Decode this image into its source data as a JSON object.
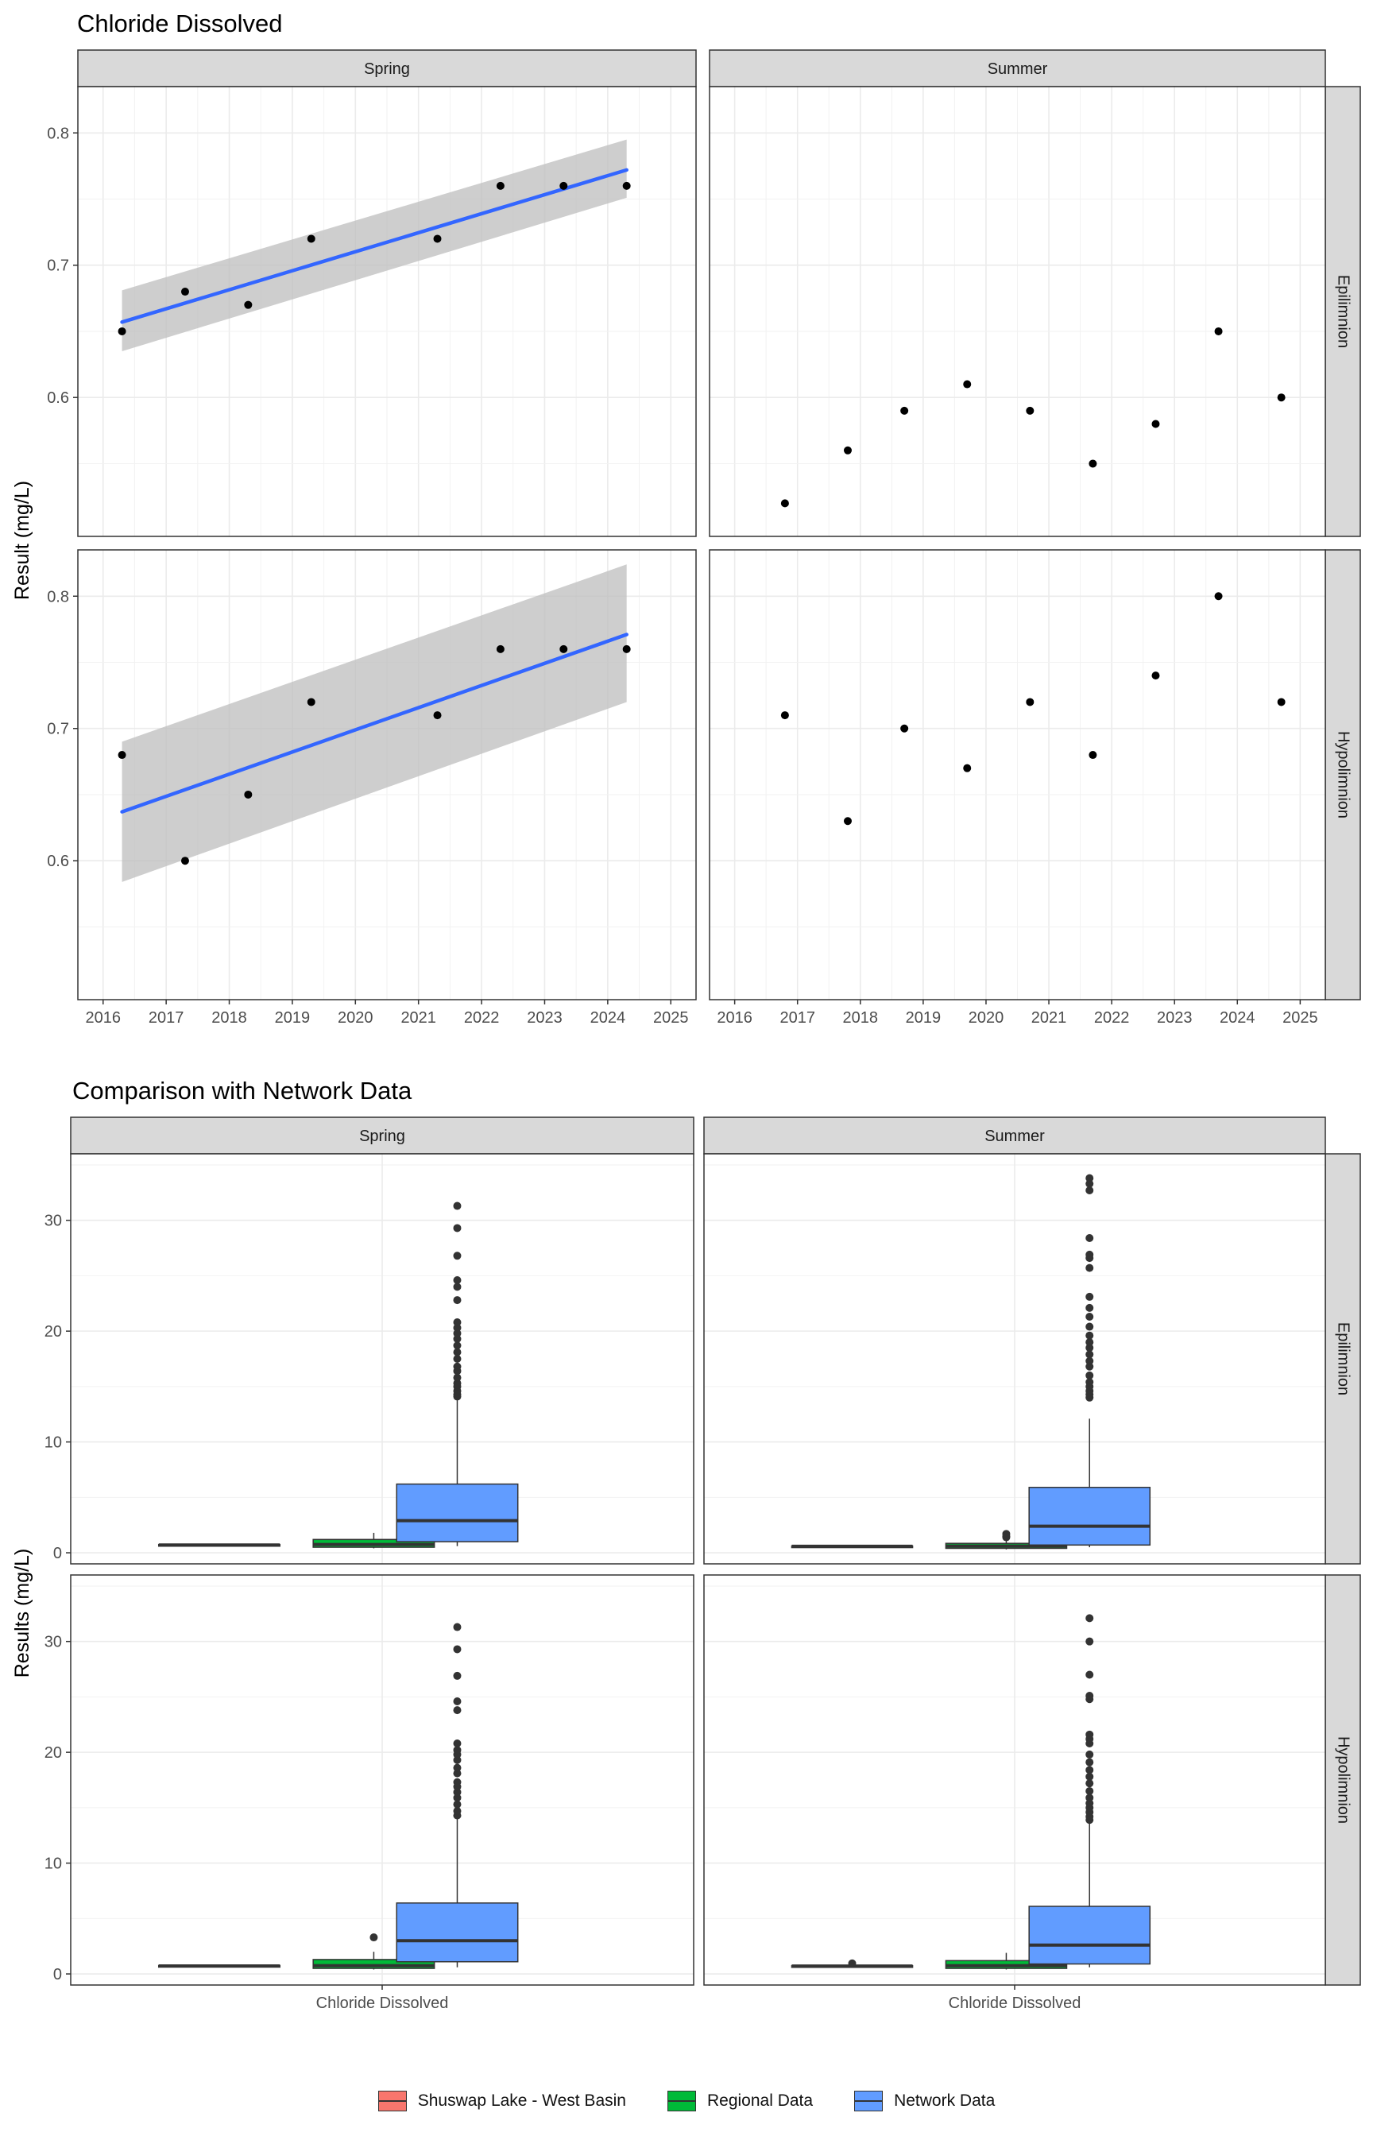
{
  "titles": {
    "top": "Chloride Dissolved",
    "bottom": "Comparison with Network Data"
  },
  "axis_labels": {
    "top_y": "Result (mg/L)",
    "bottom_y": "Results (mg/L)",
    "bottom_x_tick": "Chloride Dissolved"
  },
  "facets": {
    "columns": [
      "Spring",
      "Summer"
    ],
    "rows": [
      "Epilimnion",
      "Hypolimnion"
    ]
  },
  "colors": {
    "shuswap": "#F8766D",
    "regional": "#00BA38",
    "network": "#619CFF",
    "trend": "#3366FF",
    "ribbon": "#BDBDBD",
    "strip": "#D9D9D9",
    "grid": "#EBEBEB"
  },
  "chart_data": [
    {
      "type": "scatter",
      "title": "Chloride Dissolved",
      "ylabel": "Result (mg/L)",
      "xlim": [
        2015.6,
        2025.4
      ],
      "ylim": [
        0.495,
        0.835
      ],
      "x_ticks": [
        2016,
        2017,
        2018,
        2019,
        2020,
        2021,
        2022,
        2023,
        2024,
        2025
      ],
      "y_ticks": [
        0.6,
        0.7,
        0.8
      ],
      "grid": true,
      "panels": [
        {
          "season": "Spring",
          "layer": "Epilimnion",
          "points": [
            [
              2016.3,
              0.65
            ],
            [
              2017.3,
              0.68
            ],
            [
              2018.3,
              0.67
            ],
            [
              2019.3,
              0.72
            ],
            [
              2021.3,
              0.72
            ],
            [
              2022.3,
              0.76
            ],
            [
              2023.3,
              0.76
            ],
            [
              2024.3,
              0.76
            ]
          ],
          "trend": {
            "x": [
              2016.3,
              2024.3
            ],
            "y": [
              0.657,
              0.772
            ],
            "lower": [
              0.635,
              0.751
            ],
            "upper": [
              0.681,
              0.795
            ]
          }
        },
        {
          "season": "Summer",
          "layer": "Epilimnion",
          "points": [
            [
              2016.8,
              0.52
            ],
            [
              2017.8,
              0.56
            ],
            [
              2018.7,
              0.59
            ],
            [
              2019.7,
              0.61
            ],
            [
              2020.7,
              0.59
            ],
            [
              2021.7,
              0.55
            ],
            [
              2022.7,
              0.58
            ],
            [
              2023.7,
              0.65
            ],
            [
              2024.7,
              0.6
            ]
          ]
        },
        {
          "season": "Spring",
          "layer": "Hypolimnion",
          "points": [
            [
              2016.3,
              0.68
            ],
            [
              2017.3,
              0.6
            ],
            [
              2018.3,
              0.65
            ],
            [
              2019.3,
              0.72
            ],
            [
              2021.3,
              0.71
            ],
            [
              2022.3,
              0.76
            ],
            [
              2023.3,
              0.76
            ],
            [
              2024.3,
              0.76
            ]
          ],
          "trend": {
            "x": [
              2016.3,
              2024.3
            ],
            "y": [
              0.637,
              0.771
            ],
            "lower": [
              0.584,
              0.72
            ],
            "upper": [
              0.69,
              0.824
            ]
          }
        },
        {
          "season": "Summer",
          "layer": "Hypolimnion",
          "points": [
            [
              2016.8,
              0.71
            ],
            [
              2017.8,
              0.63
            ],
            [
              2018.7,
              0.7
            ],
            [
              2019.7,
              0.67
            ],
            [
              2020.7,
              0.72
            ],
            [
              2021.7,
              0.68
            ],
            [
              2022.7,
              0.74
            ],
            [
              2023.7,
              0.8
            ],
            [
              2024.7,
              0.72
            ]
          ]
        }
      ]
    },
    {
      "type": "box",
      "title": "Comparison with Network Data",
      "ylabel": "Results (mg/L)",
      "categories": [
        "Chloride Dissolved"
      ],
      "ylim": [
        -1,
        36
      ],
      "y_ticks": [
        0,
        10,
        20,
        30
      ],
      "grid": true,
      "legend": {
        "position": "bottom",
        "entries": [
          "Shuswap Lake - West Basin",
          "Regional Data",
          "Network Data"
        ]
      },
      "panels": [
        {
          "season": "Spring",
          "layer": "Epilimnion",
          "boxes": [
            {
              "group": "Shuswap Lake - West Basin",
              "q1": 0.65,
              "median": 0.7,
              "q3": 0.74,
              "lower": 0.65,
              "upper": 0.76,
              "outliers": []
            },
            {
              "group": "Regional Data",
              "q1": 0.5,
              "median": 0.75,
              "q3": 1.2,
              "lower": 0.4,
              "upper": 1.8,
              "outliers": []
            },
            {
              "group": "Network Data",
              "q1": 1.0,
              "median": 2.9,
              "q3": 6.2,
              "lower": 0.6,
              "upper": 13.8,
              "outliers": [
                14.1,
                14.3,
                14.6,
                15.0,
                15.3,
                15.8,
                16.4,
                16.8,
                17.5,
                18.1,
                18.7,
                19.3,
                19.8,
                20.3,
                20.8,
                22.8,
                24.0,
                24.6,
                26.8,
                29.3,
                31.3
              ]
            }
          ]
        },
        {
          "season": "Summer",
          "layer": "Epilimnion",
          "boxes": [
            {
              "group": "Shuswap Lake - West Basin",
              "q1": 0.55,
              "median": 0.59,
              "q3": 0.61,
              "lower": 0.52,
              "upper": 0.65,
              "outliers": []
            },
            {
              "group": "Regional Data",
              "q1": 0.4,
              "median": 0.6,
              "q3": 0.85,
              "lower": 0.3,
              "upper": 1.2,
              "outliers": [
                1.4,
                1.5,
                1.7
              ]
            },
            {
              "group": "Network Data",
              "q1": 0.7,
              "median": 2.4,
              "q3": 5.9,
              "lower": 0.5,
              "upper": 12.1,
              "outliers": [
                14.0,
                14.3,
                14.6,
                15.0,
                15.4,
                16.0,
                16.8,
                17.3,
                17.9,
                18.5,
                19.0,
                19.6,
                20.4,
                21.3,
                22.1,
                23.1,
                25.7,
                26.6,
                26.9,
                28.4,
                32.7,
                33.3,
                33.8
              ]
            }
          ]
        },
        {
          "season": "Spring",
          "layer": "Hypolimnion",
          "boxes": [
            {
              "group": "Shuswap Lake - West Basin",
              "q1": 0.65,
              "median": 0.72,
              "q3": 0.76,
              "lower": 0.6,
              "upper": 0.76,
              "outliers": []
            },
            {
              "group": "Regional Data",
              "q1": 0.5,
              "median": 0.75,
              "q3": 1.3,
              "lower": 0.4,
              "upper": 2.0,
              "outliers": [
                3.3
              ]
            },
            {
              "group": "Network Data",
              "q1": 1.1,
              "median": 3.0,
              "q3": 6.4,
              "lower": 0.6,
              "upper": 14.0,
              "outliers": [
                14.3,
                14.7,
                15.3,
                15.9,
                16.4,
                16.9,
                17.3,
                18.1,
                18.6,
                19.3,
                19.8,
                20.2,
                20.8,
                23.8,
                24.6,
                26.9,
                29.3,
                31.3
              ]
            }
          ]
        },
        {
          "season": "Summer",
          "layer": "Hypolimnion",
          "boxes": [
            {
              "group": "Shuswap Lake - West Basin",
              "q1": 0.68,
              "median": 0.71,
              "q3": 0.74,
              "lower": 0.63,
              "upper": 0.8,
              "outliers": [
                0.95
              ]
            },
            {
              "group": "Regional Data",
              "q1": 0.5,
              "median": 0.75,
              "q3": 1.2,
              "lower": 0.4,
              "upper": 1.9,
              "outliers": []
            },
            {
              "group": "Network Data",
              "q1": 0.9,
              "median": 2.6,
              "q3": 6.1,
              "lower": 0.6,
              "upper": 13.6,
              "outliers": [
                13.9,
                14.2,
                14.6,
                15.0,
                15.4,
                15.9,
                16.5,
                17.2,
                17.8,
                18.4,
                19.1,
                19.8,
                20.8,
                21.2,
                21.6,
                24.8,
                25.1,
                27.0,
                30.0,
                32.1
              ]
            }
          ]
        }
      ]
    }
  ]
}
